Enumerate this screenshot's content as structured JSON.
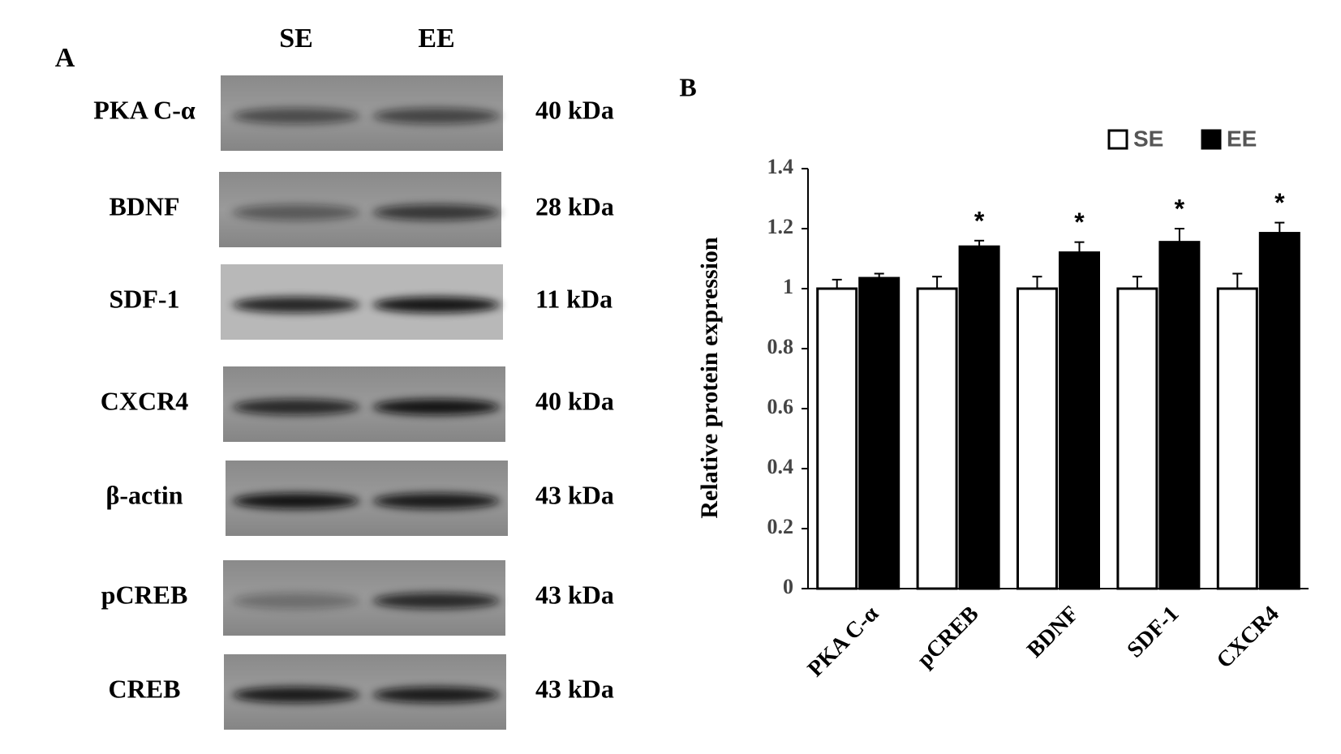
{
  "panel_a": {
    "label": "A",
    "lanes": [
      "SE",
      "EE"
    ],
    "rows": [
      {
        "protein": "PKA C-α",
        "size": "40 kDa"
      },
      {
        "protein": "BDNF",
        "size": "28 kDa"
      },
      {
        "protein": "SDF-1",
        "size": "11 kDa"
      },
      {
        "protein": "CXCR4",
        "size": "40 kDa"
      },
      {
        "protein": "β-actin",
        "size": "43 kDa"
      },
      {
        "protein": "pCREB",
        "size": "43 kDa"
      },
      {
        "protein": "CREB",
        "size": "43 kDa"
      }
    ]
  },
  "chart_data": {
    "type": "bar",
    "panel_label": "B",
    "y_label": "Relative protein expression",
    "categories": [
      "PKA C-α",
      "pCREB",
      "BDNF",
      "SDF-1",
      "CXCR4"
    ],
    "series": [
      {
        "name": "SE",
        "color": "#ffffff",
        "values": [
          1,
          1,
          1,
          1,
          1
        ],
        "errors": [
          0.03,
          0.04,
          0.04,
          0.04,
          0.05
        ]
      },
      {
        "name": "EE",
        "color": "#000000",
        "values": [
          1.035,
          1.14,
          1.12,
          1.155,
          1.185
        ],
        "errors": [
          0.015,
          0.02,
          0.035,
          0.045,
          0.035
        ],
        "markers": [
          null,
          "*",
          "*",
          "*",
          "*"
        ]
      }
    ],
    "ylim": [
      0,
      1.4
    ],
    "yticks": [
      0,
      0.2,
      0.4,
      0.6,
      0.8,
      1,
      1.2,
      1.4
    ],
    "grid": false,
    "legend": "top"
  }
}
